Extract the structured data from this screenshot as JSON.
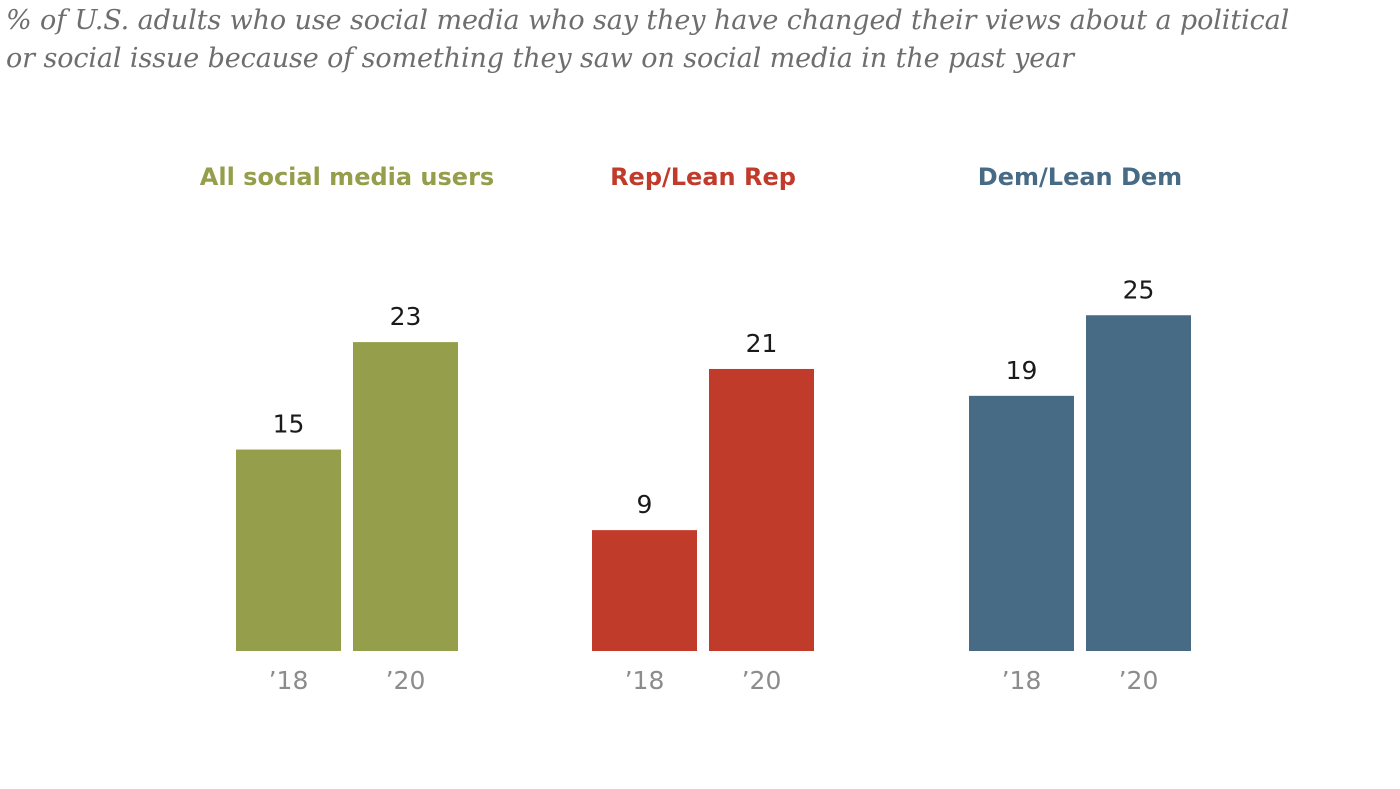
{
  "subtitle": {
    "line1": "% of U.S. adults who use social media who say they have changed their views about a political",
    "line2": "or social issue because of something they saw on social media in the past year"
  },
  "chart_data": {
    "type": "bar",
    "title": "% of U.S. adults who use social media who say they have changed their views about a political or social issue because of something they saw on social media in the past year",
    "xlabel": "",
    "ylabel": "",
    "ylim": [
      0,
      25
    ],
    "grid": false,
    "categories": [
      "’18",
      "’20"
    ],
    "series": [
      {
        "name": "All social media users",
        "color": "#959e4a",
        "values": [
          15,
          23
        ]
      },
      {
        "name": "Rep/Lean Rep",
        "color": "#c13b2b",
        "values": [
          9,
          21
        ]
      },
      {
        "name": "Dem/Lean Dem",
        "color": "#476a85",
        "values": [
          19,
          25
        ]
      }
    ]
  }
}
